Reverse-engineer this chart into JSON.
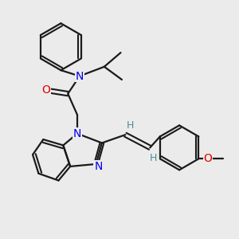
{
  "background_color": "#ebebeb",
  "atom_colors": {
    "N": "#0000ee",
    "O": "#dd0000",
    "C": "#000000",
    "H": "#4a8f8f"
  },
  "bond_color": "#1a1a1a",
  "figsize": [
    3.0,
    3.0
  ],
  "dpi": 100
}
